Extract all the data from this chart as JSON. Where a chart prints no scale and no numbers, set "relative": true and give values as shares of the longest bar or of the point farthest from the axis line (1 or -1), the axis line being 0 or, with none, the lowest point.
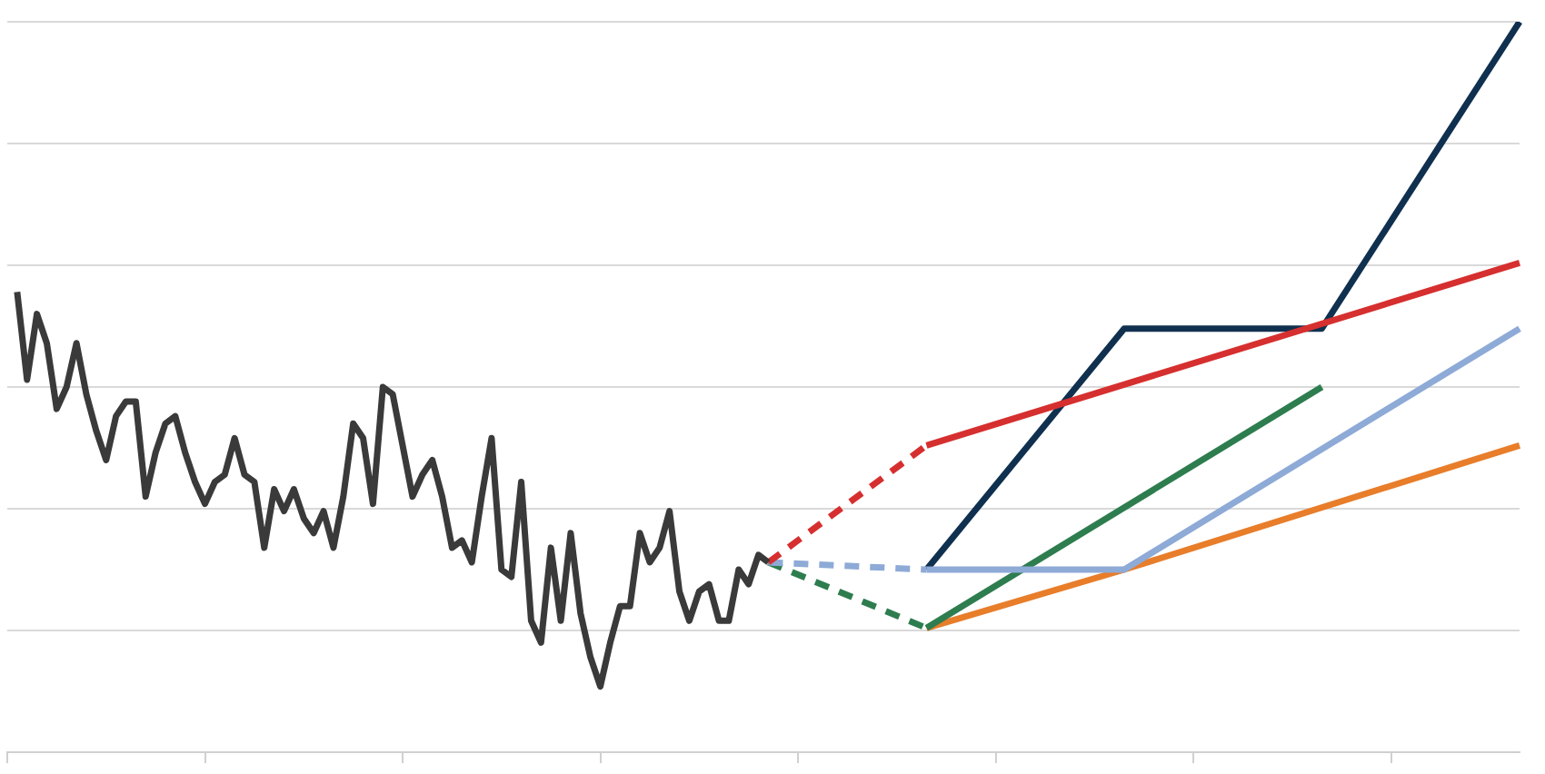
{
  "chart_data": {
    "type": "line",
    "relative": true,
    "grid": "y",
    "legend": false,
    "marker": "none",
    "tick_labels": false,
    "categories": [
      null,
      null,
      null,
      null,
      null,
      null,
      null,
      null,
      null,
      null,
      null,
      null,
      null,
      null,
      null,
      null,
      null,
      null,
      null,
      null,
      null,
      null,
      null,
      null,
      null,
      null,
      null,
      null,
      null,
      null,
      null,
      null,
      null,
      null,
      null,
      null,
      null,
      null,
      null,
      null,
      null,
      null,
      null,
      null,
      null,
      null,
      null,
      null,
      null,
      null,
      null,
      null,
      null,
      null,
      null,
      null,
      null,
      null,
      null,
      null,
      null,
      null,
      null,
      null,
      null,
      null,
      null,
      null,
      null,
      null,
      null,
      null,
      null,
      null,
      null,
      null,
      null,
      null,
      null,
      null,
      null,
      null,
      null,
      null,
      null,
      null,
      null,
      null,
      null,
      null,
      null,
      null,
      null,
      null,
      null,
      null,
      null,
      null,
      null,
      null,
      null,
      null,
      null,
      null,
      null,
      null,
      null,
      null,
      null,
      null,
      null,
      null,
      null,
      null,
      null,
      null,
      null,
      null,
      null,
      null,
      null,
      null,
      null,
      null,
      null,
      null,
      null,
      null,
      null,
      null,
      null,
      null,
      null,
      null,
      null,
      null,
      null,
      null,
      null,
      null,
      null,
      null,
      null,
      null,
      null,
      null,
      null,
      null,
      null,
      null,
      null,
      null,
      null,
      null
    ],
    "series": [
      {
        "color": "#3a3a3a",
        "line_style": "solid",
        "values": [
          null,
          0.63,
          0.51,
          0.6,
          0.56,
          0.47,
          0.5,
          0.56,
          0.49,
          0.44,
          0.4,
          0.46,
          0.48,
          0.48,
          0.35,
          0.41,
          0.45,
          0.46,
          0.41,
          0.37,
          0.34,
          0.37,
          0.38,
          0.43,
          0.38,
          0.37,
          0.28,
          0.36,
          0.33,
          0.36,
          0.32,
          0.3,
          0.33,
          0.28,
          0.35,
          0.45,
          0.43,
          0.34,
          0.5,
          0.49,
          0.42,
          0.35,
          0.38,
          0.4,
          0.35,
          0.28,
          0.29,
          0.26,
          0.35,
          0.43,
          0.25,
          0.24,
          0.37,
          0.18,
          0.15,
          0.28,
          0.18,
          0.3,
          0.19,
          0.13,
          0.09,
          0.15,
          0.2,
          0.2,
          0.3,
          0.26,
          0.28,
          0.33,
          0.22,
          0.18,
          0.22,
          0.23,
          0.18,
          0.18,
          0.25,
          0.23,
          0.27,
          0.26,
          null,
          null,
          null,
          null,
          null,
          null,
          null,
          null,
          null,
          null,
          null,
          null,
          null,
          null,
          null,
          null,
          null,
          null,
          null,
          null,
          null,
          null,
          null,
          null,
          null,
          null,
          null,
          null,
          null,
          null,
          null,
          null,
          null,
          null,
          null,
          null,
          null,
          null,
          null,
          null,
          null,
          null,
          null,
          null,
          null,
          null,
          null,
          null,
          null,
          null,
          null,
          null,
          null,
          null,
          null,
          null,
          null,
          null,
          null,
          null,
          null,
          null,
          null,
          null,
          null,
          null,
          null,
          null,
          null,
          null,
          null,
          null,
          null,
          null,
          null,
          null
        ]
      },
      {
        "color": "#d62f2f",
        "line_style": "dashed",
        "values": [
          null,
          null,
          null,
          null,
          null,
          null,
          null,
          null,
          null,
          null,
          null,
          null,
          null,
          null,
          null,
          null,
          null,
          null,
          null,
          null,
          null,
          null,
          null,
          null,
          null,
          null,
          null,
          null,
          null,
          null,
          null,
          null,
          null,
          null,
          null,
          null,
          null,
          null,
          null,
          null,
          null,
          null,
          null,
          null,
          null,
          null,
          null,
          null,
          null,
          null,
          null,
          null,
          null,
          null,
          null,
          null,
          null,
          null,
          null,
          null,
          null,
          null,
          null,
          null,
          null,
          null,
          null,
          null,
          null,
          null,
          null,
          null,
          null,
          null,
          null,
          null,
          null,
          0.26,
          null,
          null,
          null,
          null,
          null,
          null,
          null,
          null,
          null,
          null,
          null,
          null,
          null,
          null,
          null,
          0.42,
          null,
          null,
          null,
          null,
          null,
          null,
          null,
          null,
          null,
          null,
          null,
          null,
          null,
          null,
          null,
          null,
          null,
          null,
          null,
          null,
          null,
          null,
          null,
          null,
          null,
          null,
          null,
          null,
          null,
          null,
          null,
          null,
          null,
          null,
          null,
          null,
          null,
          null,
          null,
          null,
          null,
          null,
          null,
          null,
          null,
          null,
          null,
          null,
          null,
          null,
          null,
          null,
          null,
          null,
          null,
          null,
          null,
          null,
          null,
          null
        ]
      },
      {
        "color": "#8eaad6",
        "line_style": "dashed",
        "values": [
          null,
          null,
          null,
          null,
          null,
          null,
          null,
          null,
          null,
          null,
          null,
          null,
          null,
          null,
          null,
          null,
          null,
          null,
          null,
          null,
          null,
          null,
          null,
          null,
          null,
          null,
          null,
          null,
          null,
          null,
          null,
          null,
          null,
          null,
          null,
          null,
          null,
          null,
          null,
          null,
          null,
          null,
          null,
          null,
          null,
          null,
          null,
          null,
          null,
          null,
          null,
          null,
          null,
          null,
          null,
          null,
          null,
          null,
          null,
          null,
          null,
          null,
          null,
          null,
          null,
          null,
          null,
          null,
          null,
          null,
          null,
          null,
          null,
          null,
          null,
          null,
          null,
          0.26,
          null,
          null,
          null,
          null,
          null,
          null,
          null,
          null,
          null,
          null,
          null,
          null,
          null,
          null,
          null,
          0.25,
          null,
          null,
          null,
          null,
          null,
          null,
          null,
          null,
          null,
          null,
          null,
          null,
          null,
          null,
          null,
          null,
          null,
          null,
          null,
          null,
          null,
          null,
          null,
          null,
          null,
          null,
          null,
          null,
          null,
          null,
          null,
          null,
          null,
          null,
          null,
          null,
          null,
          null,
          null,
          null,
          null,
          null,
          null,
          null,
          null,
          null,
          null,
          null,
          null,
          null,
          null,
          null,
          null,
          null,
          null,
          null,
          null,
          null,
          null,
          null
        ]
      },
      {
        "color": "#2e7d4f",
        "line_style": "dashed",
        "values": [
          null,
          null,
          null,
          null,
          null,
          null,
          null,
          null,
          null,
          null,
          null,
          null,
          null,
          null,
          null,
          null,
          null,
          null,
          null,
          null,
          null,
          null,
          null,
          null,
          null,
          null,
          null,
          null,
          null,
          null,
          null,
          null,
          null,
          null,
          null,
          null,
          null,
          null,
          null,
          null,
          null,
          null,
          null,
          null,
          null,
          null,
          null,
          null,
          null,
          null,
          null,
          null,
          null,
          null,
          null,
          null,
          null,
          null,
          null,
          null,
          null,
          null,
          null,
          null,
          null,
          null,
          null,
          null,
          null,
          null,
          null,
          null,
          null,
          null,
          null,
          null,
          null,
          0.26,
          null,
          null,
          null,
          null,
          null,
          null,
          null,
          null,
          null,
          null,
          null,
          null,
          null,
          null,
          null,
          0.17,
          null,
          null,
          null,
          null,
          null,
          null,
          null,
          null,
          null,
          null,
          null,
          null,
          null,
          null,
          null,
          null,
          null,
          null,
          null,
          null,
          null,
          null,
          null,
          null,
          null,
          null,
          null,
          null,
          null,
          null,
          null,
          null,
          null,
          null,
          null,
          null,
          null,
          null,
          null,
          null,
          null,
          null,
          null,
          null,
          null,
          null,
          null,
          null,
          null,
          null,
          null,
          null,
          null,
          null,
          null,
          null,
          null,
          null,
          null,
          null
        ]
      },
      {
        "color": "#d62f2f",
        "line_style": "solid",
        "values": [
          null,
          null,
          null,
          null,
          null,
          null,
          null,
          null,
          null,
          null,
          null,
          null,
          null,
          null,
          null,
          null,
          null,
          null,
          null,
          null,
          null,
          null,
          null,
          null,
          null,
          null,
          null,
          null,
          null,
          null,
          null,
          null,
          null,
          null,
          null,
          null,
          null,
          null,
          null,
          null,
          null,
          null,
          null,
          null,
          null,
          null,
          null,
          null,
          null,
          null,
          null,
          null,
          null,
          null,
          null,
          null,
          null,
          null,
          null,
          null,
          null,
          null,
          null,
          null,
          null,
          null,
          null,
          null,
          null,
          null,
          null,
          null,
          null,
          null,
          null,
          null,
          null,
          null,
          null,
          null,
          null,
          null,
          null,
          null,
          null,
          null,
          null,
          null,
          null,
          null,
          null,
          null,
          null,
          0.42,
          null,
          null,
          null,
          null,
          null,
          null,
          null,
          null,
          null,
          null,
          null,
          null,
          null,
          null,
          null,
          null,
          null,
          null,
          null,
          null,
          null,
          null,
          null,
          null,
          null,
          null,
          null,
          null,
          null,
          null,
          null,
          null,
          null,
          null,
          null,
          null,
          null,
          null,
          null,
          null,
          null,
          null,
          null,
          null,
          null,
          null,
          null,
          null,
          null,
          null,
          null,
          null,
          null,
          null,
          null,
          null,
          null,
          null,
          null,
          0.67
        ]
      },
      {
        "color": "#8eaad6",
        "line_style": "solid",
        "values": [
          null,
          null,
          null,
          null,
          null,
          null,
          null,
          null,
          null,
          null,
          null,
          null,
          null,
          null,
          null,
          null,
          null,
          null,
          null,
          null,
          null,
          null,
          null,
          null,
          null,
          null,
          null,
          null,
          null,
          null,
          null,
          null,
          null,
          null,
          null,
          null,
          null,
          null,
          null,
          null,
          null,
          null,
          null,
          null,
          null,
          null,
          null,
          null,
          null,
          null,
          null,
          null,
          null,
          null,
          null,
          null,
          null,
          null,
          null,
          null,
          null,
          null,
          null,
          null,
          null,
          null,
          null,
          null,
          null,
          null,
          null,
          null,
          null,
          null,
          null,
          null,
          null,
          null,
          null,
          null,
          null,
          null,
          null,
          null,
          null,
          null,
          null,
          null,
          null,
          null,
          null,
          null,
          null,
          0.25,
          null,
          null,
          null,
          null,
          null,
          null,
          null,
          null,
          null,
          null,
          null,
          null,
          null,
          null,
          null,
          null,
          null,
          null,
          null,
          0.25,
          null,
          null,
          null,
          null,
          null,
          null,
          null,
          null,
          null,
          null,
          null,
          null,
          null,
          null,
          null,
          null,
          null,
          null,
          null,
          null,
          null,
          null,
          null,
          null,
          null,
          null,
          null,
          null,
          null,
          null,
          null,
          null,
          null,
          null,
          null,
          null,
          null,
          null,
          null,
          0.58
        ]
      },
      {
        "color": "#2e7d4f",
        "line_style": "solid",
        "values": [
          null,
          null,
          null,
          null,
          null,
          null,
          null,
          null,
          null,
          null,
          null,
          null,
          null,
          null,
          null,
          null,
          null,
          null,
          null,
          null,
          null,
          null,
          null,
          null,
          null,
          null,
          null,
          null,
          null,
          null,
          null,
          null,
          null,
          null,
          null,
          null,
          null,
          null,
          null,
          null,
          null,
          null,
          null,
          null,
          null,
          null,
          null,
          null,
          null,
          null,
          null,
          null,
          null,
          null,
          null,
          null,
          null,
          null,
          null,
          null,
          null,
          null,
          null,
          null,
          null,
          null,
          null,
          null,
          null,
          null,
          null,
          null,
          null,
          null,
          null,
          null,
          null,
          null,
          null,
          null,
          null,
          null,
          null,
          null,
          null,
          null,
          null,
          null,
          null,
          null,
          null,
          null,
          null,
          0.17,
          null,
          null,
          null,
          null,
          null,
          null,
          null,
          null,
          null,
          null,
          null,
          null,
          null,
          null,
          null,
          null,
          null,
          null,
          null,
          null,
          null,
          null,
          null,
          null,
          null,
          null,
          null,
          null,
          null,
          null,
          null,
          null,
          null,
          null,
          null,
          null,
          null,
          null,
          null,
          0.5,
          null,
          null,
          null,
          null,
          null,
          null,
          null,
          null,
          null,
          null,
          null,
          null,
          null,
          null,
          null,
          null,
          null,
          null,
          null,
          null
        ]
      },
      {
        "color": "#e87d2a",
        "line_style": "solid",
        "values": [
          null,
          null,
          null,
          null,
          null,
          null,
          null,
          null,
          null,
          null,
          null,
          null,
          null,
          null,
          null,
          null,
          null,
          null,
          null,
          null,
          null,
          null,
          null,
          null,
          null,
          null,
          null,
          null,
          null,
          null,
          null,
          null,
          null,
          null,
          null,
          null,
          null,
          null,
          null,
          null,
          null,
          null,
          null,
          null,
          null,
          null,
          null,
          null,
          null,
          null,
          null,
          null,
          null,
          null,
          null,
          null,
          null,
          null,
          null,
          null,
          null,
          null,
          null,
          null,
          null,
          null,
          null,
          null,
          null,
          null,
          null,
          null,
          null,
          null,
          null,
          null,
          null,
          null,
          null,
          null,
          null,
          null,
          null,
          null,
          null,
          null,
          null,
          null,
          null,
          null,
          null,
          null,
          null,
          0.17,
          null,
          null,
          null,
          null,
          null,
          null,
          null,
          null,
          null,
          null,
          null,
          null,
          null,
          null,
          null,
          null,
          null,
          null,
          null,
          0.25,
          null,
          null,
          null,
          null,
          null,
          null,
          null,
          null,
          null,
          null,
          null,
          null,
          null,
          null,
          null,
          null,
          null,
          null,
          null,
          null,
          null,
          null,
          null,
          null,
          null,
          null,
          null,
          null,
          null,
          null,
          null,
          null,
          null,
          null,
          null,
          null,
          null,
          null,
          null,
          0.42
        ]
      },
      {
        "color": "#10304f",
        "line_style": "solid",
        "values": [
          null,
          null,
          null,
          null,
          null,
          null,
          null,
          null,
          null,
          null,
          null,
          null,
          null,
          null,
          null,
          null,
          null,
          null,
          null,
          null,
          null,
          null,
          null,
          null,
          null,
          null,
          null,
          null,
          null,
          null,
          null,
          null,
          null,
          null,
          null,
          null,
          null,
          null,
          null,
          null,
          null,
          null,
          null,
          null,
          null,
          null,
          null,
          null,
          null,
          null,
          null,
          null,
          null,
          null,
          null,
          null,
          null,
          null,
          null,
          null,
          null,
          null,
          null,
          null,
          null,
          null,
          null,
          null,
          null,
          null,
          null,
          null,
          null,
          null,
          null,
          null,
          null,
          null,
          null,
          null,
          null,
          null,
          null,
          null,
          null,
          null,
          null,
          null,
          null,
          null,
          null,
          null,
          null,
          0.25,
          null,
          null,
          null,
          null,
          null,
          null,
          null,
          null,
          null,
          null,
          null,
          null,
          null,
          null,
          null,
          null,
          null,
          null,
          null,
          0.58,
          null,
          null,
          null,
          null,
          null,
          null,
          null,
          null,
          null,
          null,
          null,
          null,
          null,
          null,
          null,
          null,
          null,
          null,
          null,
          0.58,
          null,
          null,
          null,
          null,
          null,
          null,
          null,
          null,
          null,
          null,
          null,
          null,
          null,
          null,
          null,
          null,
          null,
          null,
          null,
          1.0
        ]
      }
    ]
  }
}
